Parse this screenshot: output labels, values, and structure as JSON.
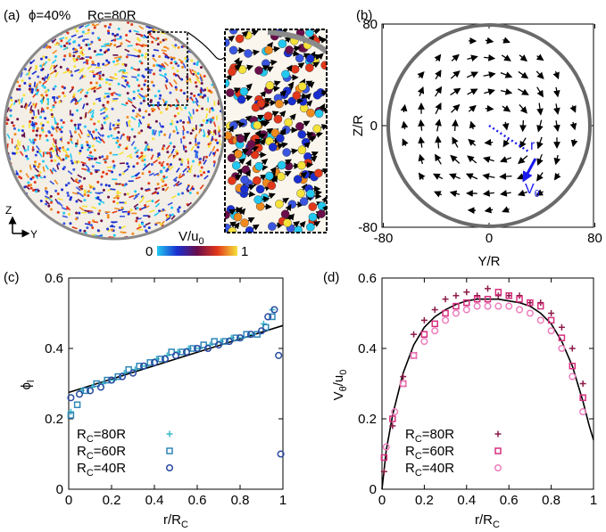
{
  "panel_a": {
    "label": "(a)",
    "phi_text": "ϕ=40%",
    "rc_text": "Rc=80R",
    "axis_z": "Z",
    "axis_y": "Y",
    "colorbar_label": "V/u",
    "colorbar_sub": "0",
    "colorbar_min": "0",
    "colorbar_max": "1",
    "colors": {
      "low": "#22c8f0",
      "mid1": "#1a2fd0",
      "mid2": "#6a0d4a",
      "mid3": "#e2371a",
      "high": "#f5e23a",
      "ring": "#8a8a8a"
    }
  },
  "chart_data": [
    {
      "id": "b",
      "type": "vector-field",
      "label": "(b)",
      "xlabel": "Y/R",
      "ylabel": "Z/R",
      "xlim": [
        -80,
        80
      ],
      "ylim": [
        -80,
        80
      ],
      "xticks": [
        "-80",
        "0",
        "80"
      ],
      "yticks": [
        "-80",
        "0",
        "80"
      ],
      "boundary_radius": 80,
      "annotation_r": "r",
      "annotation_v": "V",
      "annotation_v_sub": "θ",
      "rotation": "counterclockwise",
      "accent_color": "#1a1aee"
    },
    {
      "id": "c",
      "type": "scatter",
      "label": "(c)",
      "xlabel": "r/R",
      "xlabel_sub": "C",
      "ylabel": "ϕ",
      "ylabel_sub": "l",
      "xlim": [
        0,
        1
      ],
      "ylim": [
        0,
        0.6
      ],
      "xticks": [
        "0",
        "0.2",
        "0.4",
        "0.6",
        "0.8",
        "1"
      ],
      "yticks": [
        "0",
        "0.2",
        "0.4",
        "0.6"
      ],
      "legend_position": "bottom-left",
      "fit": {
        "x": [
          0,
          1
        ],
        "y": [
          0.275,
          0.465
        ]
      },
      "series": [
        {
          "name": "R",
          "name_sub": "C",
          "name_suffix": "=80R",
          "marker": "plus",
          "color": "#3bb8c8",
          "x": [
            0.01,
            0.06,
            0.11,
            0.16,
            0.21,
            0.26,
            0.31,
            0.36,
            0.41,
            0.46,
            0.51,
            0.56,
            0.61,
            0.66,
            0.71,
            0.76,
            0.81,
            0.86,
            0.91,
            0.95
          ],
          "y": [
            0.22,
            0.28,
            0.29,
            0.3,
            0.31,
            0.33,
            0.34,
            0.35,
            0.37,
            0.38,
            0.39,
            0.4,
            0.4,
            0.41,
            0.42,
            0.43,
            0.43,
            0.44,
            0.47,
            0.51
          ]
        },
        {
          "name": "R",
          "name_sub": "C",
          "name_suffix": "=60R",
          "marker": "square",
          "color": "#2e86b8",
          "x": [
            0.01,
            0.04,
            0.08,
            0.13,
            0.18,
            0.23,
            0.28,
            0.33,
            0.38,
            0.43,
            0.48,
            0.53,
            0.58,
            0.63,
            0.68,
            0.73,
            0.78,
            0.83,
            0.88,
            0.92,
            0.95
          ],
          "y": [
            0.21,
            0.24,
            0.28,
            0.3,
            0.31,
            0.32,
            0.34,
            0.35,
            0.36,
            0.37,
            0.39,
            0.39,
            0.4,
            0.41,
            0.42,
            0.42,
            0.43,
            0.44,
            0.44,
            0.46,
            0.49
          ]
        },
        {
          "name": "R",
          "name_sub": "C",
          "name_suffix": "=40R",
          "marker": "circle",
          "color": "#2a4aa0",
          "x": [
            0.01,
            0.05,
            0.1,
            0.15,
            0.2,
            0.25,
            0.3,
            0.35,
            0.4,
            0.45,
            0.5,
            0.55,
            0.6,
            0.65,
            0.7,
            0.75,
            0.8,
            0.85,
            0.9,
            0.93,
            0.96,
            0.98,
            0.99
          ],
          "y": [
            0.26,
            0.27,
            0.28,
            0.29,
            0.31,
            0.32,
            0.33,
            0.35,
            0.36,
            0.37,
            0.38,
            0.39,
            0.4,
            0.4,
            0.41,
            0.42,
            0.43,
            0.44,
            0.45,
            0.49,
            0.51,
            0.38,
            0.1
          ]
        }
      ]
    },
    {
      "id": "d",
      "type": "scatter",
      "label": "(d)",
      "xlabel": "r/R",
      "xlabel_sub": "C",
      "ylabel": "V",
      "ylabel_sub": "θ",
      "ylabel_suffix": "/u",
      "ylabel_suffix_sub": "0",
      "xlim": [
        0,
        1
      ],
      "ylim": [
        0,
        0.6
      ],
      "xticks": [
        "0",
        "0.2",
        "0.4",
        "0.6",
        "0.8",
        "1"
      ],
      "yticks": [
        "0",
        "0.2",
        "0.4",
        "0.6"
      ],
      "legend_position": "bottom-center",
      "fit": {
        "x": [
          0,
          0.02,
          0.05,
          0.1,
          0.15,
          0.2,
          0.25,
          0.3,
          0.35,
          0.4,
          0.45,
          0.5,
          0.55,
          0.6,
          0.65,
          0.7,
          0.75,
          0.8,
          0.85,
          0.9,
          0.95,
          0.98,
          1.0
        ],
        "y": [
          0.0,
          0.11,
          0.21,
          0.33,
          0.41,
          0.46,
          0.49,
          0.51,
          0.525,
          0.535,
          0.54,
          0.54,
          0.54,
          0.535,
          0.53,
          0.52,
          0.5,
          0.47,
          0.42,
          0.35,
          0.25,
          0.18,
          0.14
        ]
      },
      "series": [
        {
          "name": "R",
          "name_sub": "C",
          "name_suffix": "=80R",
          "marker": "plus",
          "color": "#8b1a48",
          "x": [
            0.01,
            0.05,
            0.1,
            0.15,
            0.2,
            0.25,
            0.3,
            0.35,
            0.4,
            0.45,
            0.5,
            0.55,
            0.6,
            0.65,
            0.7,
            0.75,
            0.8,
            0.85,
            0.9,
            0.95
          ],
          "y": [
            0.05,
            0.18,
            0.32,
            0.44,
            0.48,
            0.51,
            0.54,
            0.55,
            0.56,
            0.55,
            0.57,
            0.55,
            0.55,
            0.55,
            0.53,
            0.53,
            0.5,
            0.46,
            0.4,
            0.3
          ]
        },
        {
          "name": "R",
          "name_sub": "C",
          "name_suffix": "=60R",
          "marker": "square",
          "color": "#d6307e",
          "x": [
            0.01,
            0.05,
            0.1,
            0.15,
            0.2,
            0.25,
            0.3,
            0.35,
            0.4,
            0.45,
            0.5,
            0.55,
            0.6,
            0.65,
            0.7,
            0.75,
            0.8,
            0.85,
            0.9,
            0.95
          ],
          "y": [
            0.09,
            0.2,
            0.3,
            0.38,
            0.44,
            0.47,
            0.5,
            0.52,
            0.53,
            0.54,
            0.54,
            0.56,
            0.55,
            0.54,
            0.53,
            0.52,
            0.48,
            0.43,
            0.35,
            0.26
          ]
        },
        {
          "name": "R",
          "name_sub": "C",
          "name_suffix": "=40R",
          "marker": "circle",
          "color": "#ec7fbd",
          "x": [
            0.02,
            0.06,
            0.1,
            0.15,
            0.2,
            0.25,
            0.3,
            0.35,
            0.4,
            0.45,
            0.5,
            0.55,
            0.6,
            0.65,
            0.7,
            0.75,
            0.8,
            0.85,
            0.9,
            0.95
          ],
          "y": [
            0.12,
            0.22,
            0.3,
            0.38,
            0.42,
            0.45,
            0.48,
            0.5,
            0.51,
            0.52,
            0.52,
            0.52,
            0.52,
            0.51,
            0.5,
            0.48,
            0.45,
            0.4,
            0.32,
            0.22
          ]
        }
      ]
    }
  ]
}
